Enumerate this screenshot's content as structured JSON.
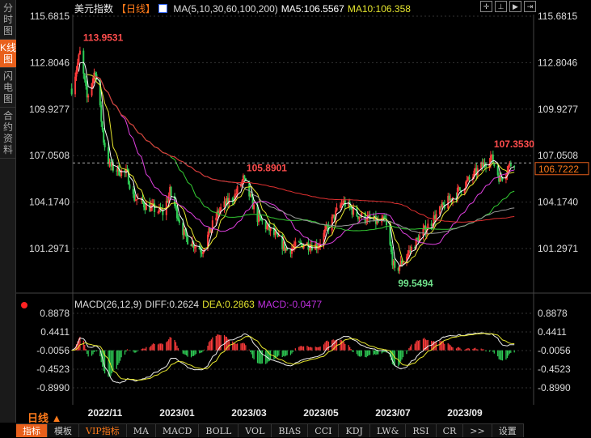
{
  "sidebar": {
    "tabs": [
      "分时图",
      "K线图",
      "闪电图",
      "合约资料"
    ],
    "active": 1
  },
  "header": {
    "title": "美元指数",
    "period": "【日线】",
    "ma_label": "MA(5,10,30,60,100,200)",
    "ma5": "MA5:106.5567",
    "ma10": "MA10:106.358"
  },
  "toolbar_icons": [
    "crosshair-icon",
    "zoom-range-icon",
    "play-icon",
    "step-icon"
  ],
  "macd_header": {
    "label": "MACD(26,12,9)",
    "diff": "DIFF:0.2624",
    "dea": "DEA:0.2863",
    "macd": "MACD:-0.0477"
  },
  "period_label": "日线",
  "bottom_tabs": [
    "指标",
    "模板",
    "VIP指标",
    "MA",
    "MACD",
    "BOLL",
    "VOL",
    "BIAS",
    "CCI",
    "KDJ",
    "LW&",
    "RSI",
    "CR",
    ">>",
    "设置"
  ],
  "colors": {
    "up": "#ff3b3b",
    "down": "#2ecc55",
    "ma5": "#ffffff",
    "ma10": "#e6e62e",
    "ma30": "#e040e0",
    "ma60": "#33cc33",
    "ma100": "#9a9a9a",
    "ma200": "#e03030",
    "accent": "#e8601c"
  },
  "chart_data": [
    {
      "type": "candlestick",
      "title": "美元指数",
      "yticks": [
        "115.6815",
        "112.8046",
        "109.9277",
        "107.0508",
        "104.1740",
        "101.2971"
      ],
      "ylim": [
        99.3,
        115.6815
      ],
      "current_price": "106.7222",
      "annotations": [
        {
          "text": "113.9531",
          "type": "high"
        },
        {
          "text": "105.8901",
          "type": "high"
        },
        {
          "text": "107.3530",
          "type": "high"
        },
        {
          "text": "99.5494",
          "type": "low"
        }
      ],
      "approx_closes": [
        [
          "2022-10-14",
          111.2
        ],
        [
          "2022-10-21",
          113.4
        ],
        [
          "2022-10-27",
          110.6
        ],
        [
          "2022-11-03",
          112.4
        ],
        [
          "2022-11-10",
          108.0
        ],
        [
          "2022-11-15",
          106.4
        ],
        [
          "2022-11-30",
          105.9
        ],
        [
          "2022-12-05",
          104.5
        ],
        [
          "2022-12-15",
          104.0
        ],
        [
          "2022-12-30",
          103.5
        ],
        [
          "2023-01-05",
          104.8
        ],
        [
          "2023-01-18",
          102.0
        ],
        [
          "2023-02-01",
          101.2
        ],
        [
          "2023-02-15",
          103.6
        ],
        [
          "2023-03-01",
          104.6
        ],
        [
          "2023-03-08",
          105.6
        ],
        [
          "2023-03-20",
          103.2
        ],
        [
          "2023-04-01",
          102.3
        ],
        [
          "2023-04-14",
          101.2
        ],
        [
          "2023-04-28",
          101.6
        ],
        [
          "2023-05-10",
          101.5
        ],
        [
          "2023-05-31",
          104.2
        ],
        [
          "2023-06-12",
          103.4
        ],
        [
          "2023-06-30",
          102.9
        ],
        [
          "2023-07-06",
          103.0
        ],
        [
          "2023-07-14",
          99.8
        ],
        [
          "2023-07-25",
          101.0
        ],
        [
          "2023-08-10",
          102.6
        ],
        [
          "2023-08-25",
          104.0
        ],
        [
          "2023-09-08",
          105.0
        ],
        [
          "2023-09-27",
          106.5
        ],
        [
          "2023-10-03",
          107.0
        ],
        [
          "2023-10-11",
          105.6
        ],
        [
          "2023-10-18",
          106.4
        ],
        [
          "2023-10-23",
          106.72
        ]
      ],
      "xticks": [
        "2022/11",
        "2023/01",
        "2023/03",
        "2023/05",
        "2023/07",
        "2023/09"
      ]
    },
    {
      "type": "macd",
      "yticks": [
        "0.8878",
        "0.4411",
        "-0.0056",
        "-0.4523",
        "-0.8990"
      ],
      "ylim": [
        -1.05,
        0.95
      ]
    }
  ]
}
